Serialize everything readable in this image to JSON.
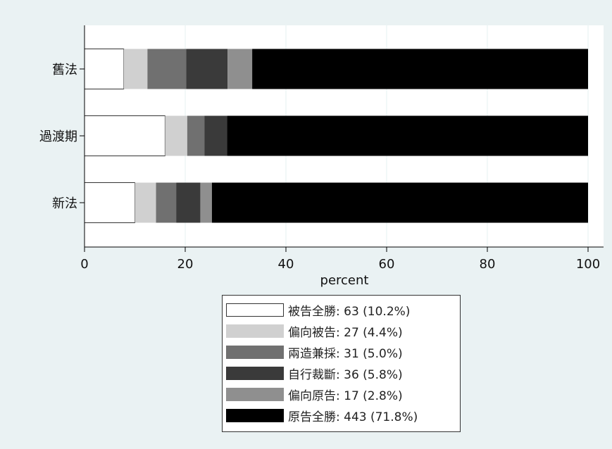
{
  "chart_data": {
    "type": "bar",
    "orientation": "horizontal",
    "stacked": true,
    "categories": [
      "舊法",
      "過渡期",
      "新法"
    ],
    "xlabel": "percent",
    "xlim": [
      0,
      100
    ],
    "xticks": [
      0,
      20,
      40,
      60,
      80,
      100
    ],
    "grid": true,
    "legend_position": "bottom",
    "series": [
      {
        "name": "被告全勝",
        "color": "#ffffff",
        "values": [
          7.8,
          16.0,
          10.0
        ]
      },
      {
        "name": "偏向被告",
        "color": "#d0d0d0",
        "values": [
          4.7,
          4.4,
          4.2
        ]
      },
      {
        "name": "兩造兼採",
        "color": "#707070",
        "values": [
          7.7,
          3.4,
          4.0
        ]
      },
      {
        "name": "自行裁斷",
        "color": "#3a3a3a",
        "values": [
          8.2,
          4.5,
          4.8
        ]
      },
      {
        "name": "偏向原告",
        "color": "#8f8f8f",
        "values": [
          4.9,
          0.0,
          2.3
        ]
      },
      {
        "name": "原告全勝",
        "color": "#000000",
        "values": [
          66.7,
          71.7,
          74.7
        ]
      }
    ]
  },
  "legend": {
    "entries": [
      {
        "label": "被告全勝:  63 (10.2%)",
        "color": "#ffffff"
      },
      {
        "label": "偏向被告:  27 (4.4%)",
        "color": "#d0d0d0"
      },
      {
        "label": "兩造兼採:  31 (5.0%)",
        "color": "#707070"
      },
      {
        "label": "自行裁斷:  36 (5.8%)",
        "color": "#3a3a3a"
      },
      {
        "label": "偏向原告:  17 (2.8%)",
        "color": "#8f8f8f"
      },
      {
        "label": "原告全勝:  443 (71.8%)",
        "color": "#000000"
      }
    ]
  }
}
